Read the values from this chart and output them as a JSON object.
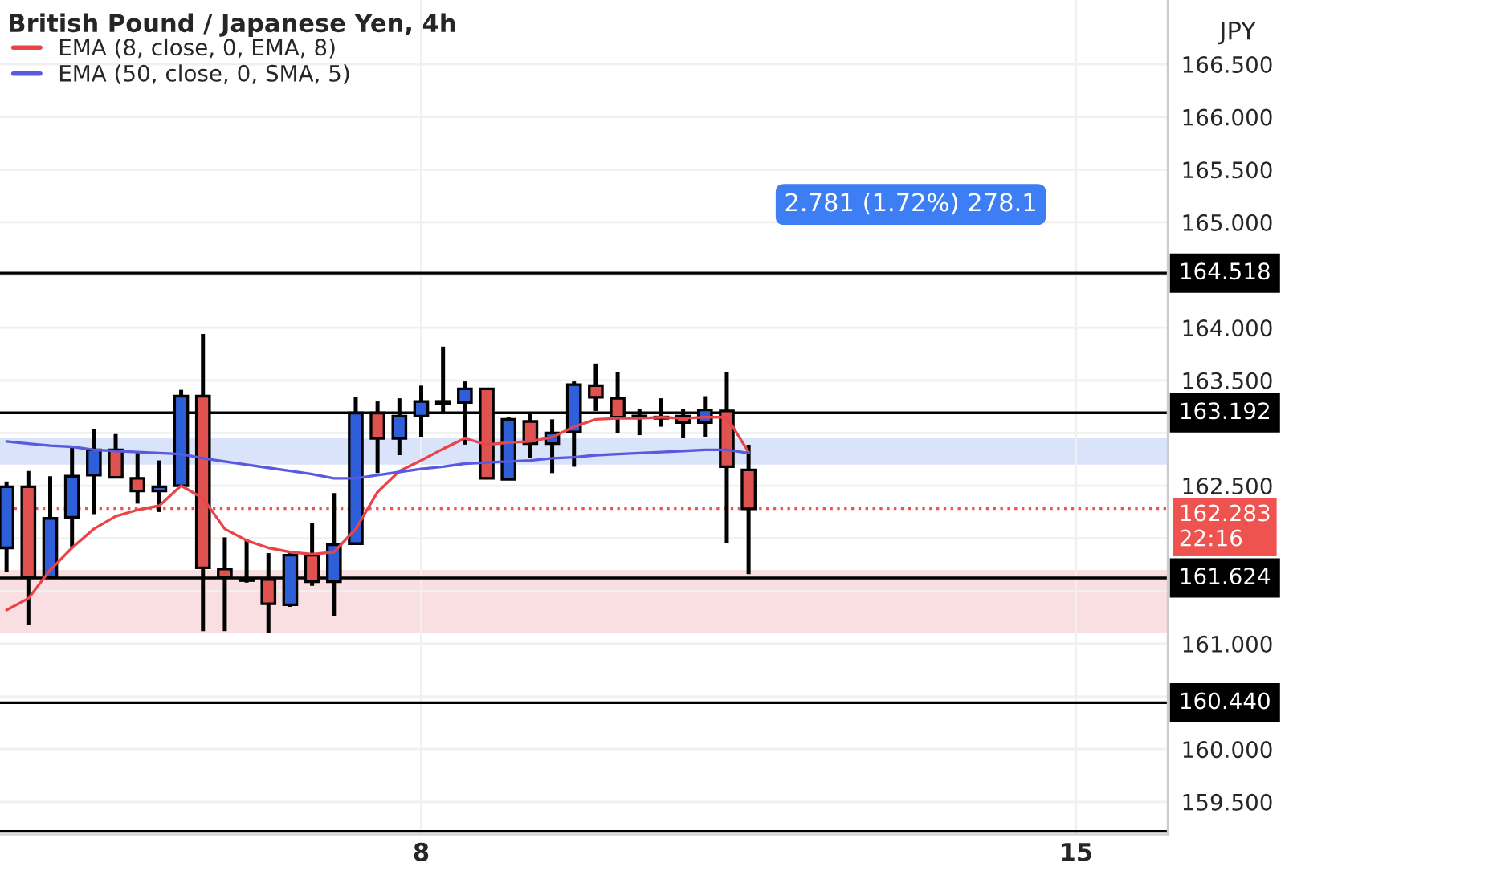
{
  "chart_data": {
    "type": "candlestick",
    "title": "British Pound / Japanese Yen, 4h",
    "ylabel": "JPY",
    "categories": [
      null,
      null,
      null,
      null,
      null,
      null,
      null,
      null,
      null,
      null,
      null,
      null,
      null,
      null,
      null,
      null,
      null,
      null,
      null,
      "8",
      null,
      null,
      null,
      null,
      null,
      null,
      null,
      null,
      null,
      null,
      null,
      null,
      null,
      null,
      null,
      null,
      null,
      null,
      null,
      null,
      null,
      null,
      null,
      null,
      null,
      null,
      null,
      null,
      null,
      "15",
      null,
      null,
      null,
      null
    ],
    "ohlc": [
      [
        161.91,
        162.54,
        161.68,
        162.49
      ],
      [
        162.49,
        162.64,
        161.18,
        161.63
      ],
      [
        161.63,
        162.59,
        161.63,
        162.19
      ],
      [
        162.2,
        162.88,
        161.91,
        162.59
      ],
      [
        162.6,
        163.04,
        162.23,
        162.84
      ],
      [
        162.84,
        162.99,
        162.58,
        162.58
      ],
      [
        162.57,
        162.82,
        162.33,
        162.45
      ],
      [
        162.45,
        162.74,
        162.25,
        162.49
      ],
      [
        162.5,
        163.41,
        162.5,
        163.35
      ],
      [
        163.35,
        163.94,
        161.12,
        161.72
      ],
      [
        161.71,
        162.01,
        161.12,
        161.63
      ],
      [
        161.61,
        161.99,
        161.58,
        161.6
      ],
      [
        161.61,
        161.86,
        161.1,
        161.38
      ],
      [
        161.37,
        161.86,
        161.35,
        161.84
      ],
      [
        161.84,
        162.15,
        161.55,
        161.59
      ],
      [
        161.59,
        162.43,
        161.26,
        161.94
      ],
      [
        161.95,
        163.34,
        161.95,
        163.19
      ],
      [
        163.19,
        163.3,
        162.62,
        162.95
      ],
      [
        162.95,
        163.33,
        162.79,
        163.16
      ],
      [
        163.16,
        163.45,
        162.96,
        163.3
      ],
      [
        163.3,
        163.82,
        163.18,
        163.28
      ],
      [
        163.29,
        163.49,
        162.89,
        163.42
      ],
      [
        163.42,
        163.42,
        162.57,
        162.57
      ],
      [
        162.56,
        163.15,
        162.56,
        163.13
      ],
      [
        163.11,
        163.19,
        162.76,
        162.9
      ],
      [
        162.9,
        163.13,
        162.62,
        163.0
      ],
      [
        163.01,
        163.49,
        162.68,
        163.46
      ],
      [
        163.45,
        163.66,
        163.21,
        163.34
      ],
      [
        163.33,
        163.58,
        163.0,
        163.15
      ],
      [
        163.16,
        163.23,
        162.98,
        163.15
      ],
      [
        163.14,
        163.33,
        163.06,
        163.15
      ],
      [
        163.16,
        163.23,
        162.95,
        163.1
      ],
      [
        163.1,
        163.35,
        162.96,
        163.22
      ],
      [
        163.21,
        163.58,
        161.96,
        162.68
      ],
      [
        162.65,
        162.89,
        161.66,
        162.28
      ],
      null,
      null,
      null,
      null,
      null,
      null,
      null,
      null,
      null,
      null,
      null,
      null,
      null,
      null,
      null,
      null,
      null,
      null,
      null
    ],
    "colors": [
      "#2f5fd8",
      "#e0524f",
      "#2f5fd8",
      "#2f5fd8",
      "#2f5fd8",
      "#e0524f",
      "#e0524f",
      "#2f5fd8",
      "#2f5fd8",
      "#e0524f",
      "#e0524f",
      "#e0524f",
      "#e0524f",
      "#2f5fd8",
      "#e0524f",
      "#2f5fd8",
      "#2f5fd8",
      "#e0524f",
      "#2f5fd8",
      "#2f5fd8",
      "#e0524f",
      "#2f5fd8",
      "#e0524f",
      "#2f5fd8",
      "#e0524f",
      "#2f5fd8",
      "#2f5fd8",
      "#e0524f",
      "#e0524f",
      "#e0524f",
      "#2f5fd8",
      "#e0524f",
      "#2f5fd8",
      "#e0524f",
      "#e0524f",
      null,
      null,
      null,
      null,
      null,
      null,
      null,
      null,
      null,
      null,
      null,
      null,
      null,
      null,
      null,
      null,
      null,
      null,
      null
    ],
    "series": [
      {
        "name": "EMA (8, close, 0, EMA, 8)",
        "type": "line",
        "color": "#e8454a",
        "values": [
          161.32,
          161.43,
          161.7,
          161.91,
          162.09,
          162.21,
          162.27,
          162.31,
          162.5,
          162.38,
          162.09,
          161.98,
          161.91,
          161.87,
          161.85,
          161.87,
          162.09,
          162.44,
          162.64,
          162.74,
          162.85,
          162.95,
          162.89,
          162.91,
          162.92,
          162.96,
          163.06,
          163.13,
          163.14,
          163.14,
          163.15,
          163.14,
          163.15,
          163.15,
          162.82,
          null,
          null,
          null,
          null,
          null,
          null,
          null,
          null,
          null,
          null,
          null,
          null,
          null,
          null,
          null,
          null,
          null,
          null,
          null
        ]
      },
      {
        "name": "EMA (50, close, 0, SMA, 5)",
        "type": "line",
        "color": "#5a5ae0",
        "values": [
          162.92,
          162.9,
          162.88,
          162.87,
          162.84,
          162.83,
          162.82,
          162.81,
          162.8,
          162.76,
          162.73,
          162.7,
          162.67,
          162.64,
          162.61,
          162.57,
          162.57,
          162.6,
          162.63,
          162.66,
          162.68,
          162.71,
          162.72,
          162.73,
          162.74,
          162.76,
          162.77,
          162.79,
          162.8,
          162.81,
          162.82,
          162.83,
          162.84,
          162.84,
          162.81,
          null,
          null,
          null,
          null,
          null,
          null,
          null,
          null,
          null,
          null,
          null,
          null,
          null,
          null,
          null,
          null,
          null,
          null,
          null
        ]
      }
    ],
    "ylim": [
      159.19,
      167.11
    ],
    "yticks": [
      {
        "value": 159.5,
        "label": "159.500"
      },
      {
        "value": 160.0,
        "label": "160.000"
      },
      {
        "value": 160.5,
        "label": null
      },
      {
        "value": 161.0,
        "label": "161.000"
      },
      {
        "value": 161.5,
        "label": null
      },
      {
        "value": 162.0,
        "label": null
      },
      {
        "value": 162.5,
        "label": "162.500"
      },
      {
        "value": 163.0,
        "label": null
      },
      {
        "value": 163.5,
        "label": "163.500"
      },
      {
        "value": 164.0,
        "label": "164.000"
      },
      {
        "value": 164.5,
        "label": null
      },
      {
        "value": 165.0,
        "label": "165.000"
      },
      {
        "value": 165.5,
        "label": "165.500"
      },
      {
        "value": 166.0,
        "label": "166.000"
      },
      {
        "value": 166.5,
        "label": "166.500"
      }
    ],
    "ref_lines": [
      {
        "axis": "y",
        "value": 164.518,
        "label": "164.518",
        "color": "#000000",
        "line_style": "solid"
      },
      {
        "axis": "y",
        "value": 163.192,
        "label": "163.192",
        "color": "#000000",
        "line_style": "solid"
      },
      {
        "axis": "y",
        "value": 162.283,
        "label": "162.283\n22:16",
        "color": "#ef5350",
        "line_style": "dotted"
      },
      {
        "axis": "y",
        "value": 161.624,
        "label": "161.624",
        "color": "#000000",
        "line_style": "solid"
      },
      {
        "axis": "y",
        "value": 160.44,
        "label": "160.440",
        "color": "#000000",
        "line_style": "solid"
      },
      {
        "axis": "y",
        "value": 159.22,
        "color": "#000000",
        "line_style": "solid"
      }
    ],
    "bands": [
      {
        "axis": "y",
        "from": 161.1,
        "to": 161.7,
        "color": "#f8d7d9"
      },
      {
        "axis": "y",
        "from": 162.7,
        "to": 162.95,
        "color": "#cfdcf8"
      }
    ],
    "annotations": [
      "2.781 (1.72%) 278.1"
    ],
    "legend": "top left",
    "grid": true
  }
}
